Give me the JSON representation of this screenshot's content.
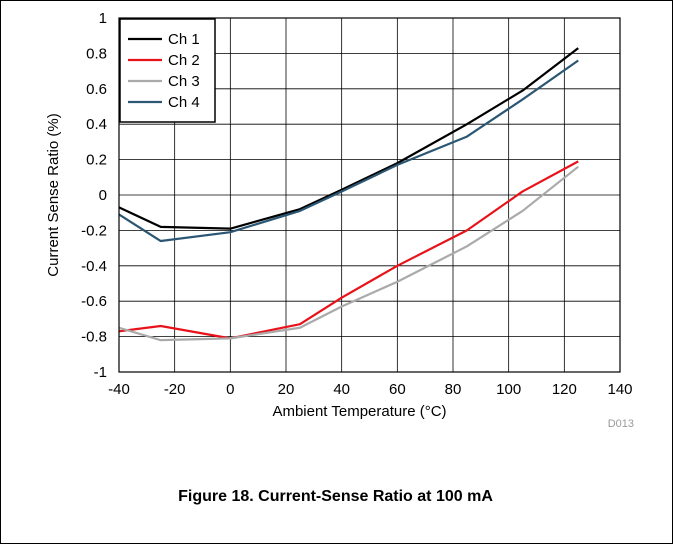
{
  "caption": "Figure 18. Current-Sense Ratio at 100 mA",
  "figure_id": "D013",
  "chart_data": {
    "type": "line",
    "xlabel": "Ambient Temperature (°C)",
    "ylabel": "Current Sense Ratio (%)",
    "xlim": [
      -40,
      140
    ],
    "ylim": [
      -1,
      1
    ],
    "xticks": [
      -40,
      -20,
      0,
      20,
      40,
      60,
      80,
      100,
      120,
      140
    ],
    "yticks": [
      1,
      0.8,
      0.6,
      0.4,
      0.2,
      0,
      -0.2,
      -0.4,
      -0.6,
      -0.8,
      -1
    ],
    "grid": true,
    "legend_position": "top-left",
    "series": [
      {
        "name": "Ch 1",
        "color": "#000000",
        "x": [
          -40,
          -25,
          0,
          25,
          40,
          60,
          85,
          105,
          125
        ],
        "y": [
          -0.07,
          -0.18,
          -0.19,
          -0.08,
          0.03,
          0.18,
          0.4,
          0.59,
          0.83
        ]
      },
      {
        "name": "Ch 2",
        "color": "#e8131a",
        "x": [
          -40,
          -25,
          0,
          25,
          40,
          60,
          85,
          105,
          125
        ],
        "y": [
          -0.77,
          -0.74,
          -0.81,
          -0.73,
          -0.58,
          -0.4,
          -0.2,
          0.02,
          0.19
        ]
      },
      {
        "name": "Ch 3",
        "color": "#aaaaaa",
        "x": [
          -40,
          -25,
          0,
          25,
          40,
          60,
          85,
          105,
          125
        ],
        "y": [
          -0.75,
          -0.82,
          -0.81,
          -0.75,
          -0.63,
          -0.49,
          -0.29,
          -0.09,
          0.16
        ]
      },
      {
        "name": "Ch 4",
        "color": "#2b5773",
        "x": [
          -40,
          -25,
          0,
          25,
          40,
          60,
          85,
          105,
          125
        ],
        "y": [
          -0.11,
          -0.26,
          -0.21,
          -0.09,
          0.02,
          0.17,
          0.33,
          0.54,
          0.76
        ]
      }
    ]
  }
}
